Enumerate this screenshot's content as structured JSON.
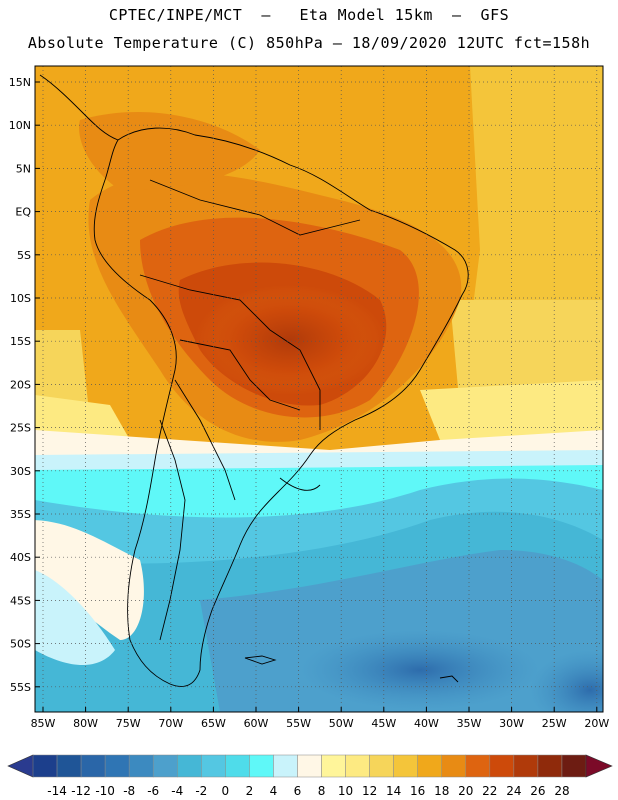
{
  "header": {
    "line1": "CPTEC/INPE/MCT  –   Eta Model 15km  –  GFS",
    "line2": "Absolute Temperature (C) 850hPa – 18/09/2020 12UTC fct=158h"
  },
  "axes": {
    "lat_labels": [
      "15N",
      "10N",
      "5N",
      "EQ",
      "5S",
      "10S",
      "15S",
      "20S",
      "25S",
      "30S",
      "35S",
      "40S",
      "45S",
      "50S",
      "55S"
    ],
    "lon_labels": [
      "85W",
      "80W",
      "75W",
      "70W",
      "65W",
      "60W",
      "55W",
      "50W",
      "45W",
      "40W",
      "35W",
      "30W",
      "25W",
      "20W"
    ]
  },
  "legend": {
    "values": [
      "-14",
      "-12",
      "-10",
      "-8",
      "-6",
      "-4",
      "-2",
      "0",
      "2",
      "4",
      "6",
      "8",
      "10",
      "12",
      "14",
      "16",
      "18",
      "20",
      "22",
      "24",
      "26",
      "28"
    ],
    "colors": [
      "#1c3f8c",
      "#1f5597",
      "#2a66a8",
      "#2f75b4",
      "#3c8ac0",
      "#4da0cc",
      "#45b7d6",
      "#54c7e2",
      "#4fdcea",
      "#5ff8f8",
      "#c9f3fb",
      "#fff7e6",
      "#fff59a",
      "#fdea82",
      "#f6d55a",
      "#f4c53a",
      "#f0a81b",
      "#e88b14",
      "#de6410",
      "#cd4a0a",
      "#b03a0a",
      "#8f2a0b",
      "#6d1c12"
    ],
    "underflow_color": "#2a3b8f",
    "overflow_color": "#7b0a28"
  },
  "map": {
    "region": "South America",
    "lat_range": [
      -57,
      17
    ],
    "lon_range": [
      -86,
      -20
    ]
  }
}
